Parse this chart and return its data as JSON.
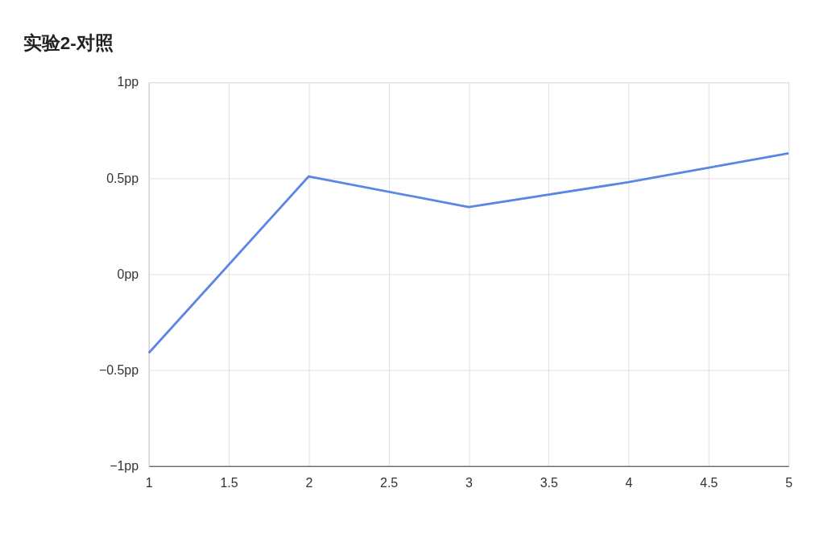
{
  "chart_data": {
    "type": "line",
    "title": "实验2-对照",
    "x": [
      1,
      2,
      3,
      4,
      5
    ],
    "series": [
      {
        "color": "#5b86e5",
        "values": [
          -0.41,
          0.51,
          0.35,
          0.48,
          0.63
        ]
      }
    ],
    "xlim": [
      1,
      5
    ],
    "xticks": [
      1,
      1.5,
      2,
      2.5,
      3,
      3.5,
      4,
      4.5,
      5
    ],
    "ylim": [
      -1,
      1
    ],
    "yticks": [
      {
        "value": -1,
        "label": "−1pp"
      },
      {
        "value": -0.5,
        "label": "−0.5pp"
      },
      {
        "value": 0,
        "label": "0pp"
      },
      {
        "value": 0.5,
        "label": "0.5pp"
      },
      {
        "value": 1,
        "label": "1pp"
      }
    ],
    "grid": true,
    "marker": "none",
    "line_style": "solid"
  }
}
